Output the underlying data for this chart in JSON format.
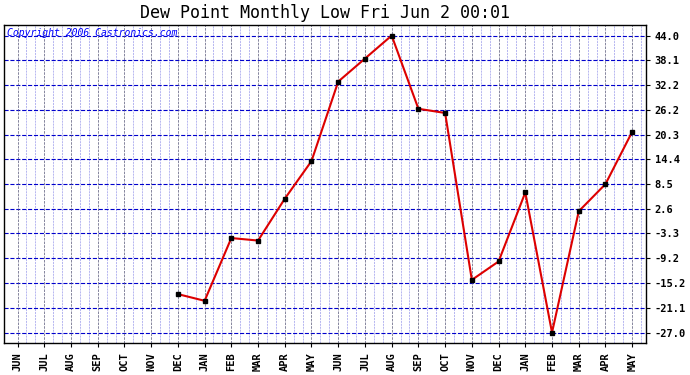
{
  "title": "Dew Point Monthly Low Fri Jun 2 00:01",
  "copyright": "Copyright 2006 Castronics.com",
  "x_labels": [
    "JUN",
    "JUL",
    "AUG",
    "SEP",
    "OCT",
    "NOV",
    "DEC",
    "JAN",
    "FEB",
    "MAR",
    "APR",
    "MAY",
    "JUN",
    "JUL",
    "AUG",
    "SEP",
    "OCT",
    "NOV",
    "DEC",
    "JAN",
    "FEB",
    "MAR",
    "APR",
    "MAY"
  ],
  "y_values": [
    null,
    null,
    null,
    null,
    null,
    null,
    -17.8,
    -19.4,
    -4.4,
    -5.0,
    5.0,
    14.0,
    33.0,
    38.5,
    44.0,
    26.5,
    25.5,
    -14.4,
    -10.0,
    6.5,
    -27.0,
    2.0,
    8.5,
    21.0
  ],
  "y_ticks": [
    -27.0,
    -21.1,
    -15.2,
    -9.2,
    -3.3,
    2.6,
    8.5,
    14.4,
    20.3,
    26.2,
    32.2,
    38.1,
    44.0
  ],
  "ylim": [
    -29.5,
    46.5
  ],
  "line_color": "#dd0000",
  "marker_color": "#000000",
  "bg_color": "#ffffff",
  "grid_color_h": "#0000cc",
  "grid_color_v": "#555577",
  "border_color": "#000000",
  "title_fontsize": 12,
  "tick_fontsize": 7.5,
  "copyright_fontsize": 7
}
